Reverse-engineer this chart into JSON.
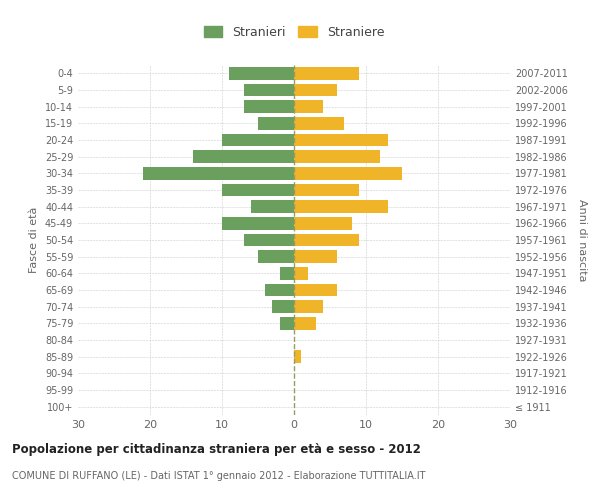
{
  "age_groups": [
    "100+",
    "95-99",
    "90-94",
    "85-89",
    "80-84",
    "75-79",
    "70-74",
    "65-69",
    "60-64",
    "55-59",
    "50-54",
    "45-49",
    "40-44",
    "35-39",
    "30-34",
    "25-29",
    "20-24",
    "15-19",
    "10-14",
    "5-9",
    "0-4"
  ],
  "birth_years": [
    "≤ 1911",
    "1912-1916",
    "1917-1921",
    "1922-1926",
    "1927-1931",
    "1932-1936",
    "1937-1941",
    "1942-1946",
    "1947-1951",
    "1952-1956",
    "1957-1961",
    "1962-1966",
    "1967-1971",
    "1972-1976",
    "1977-1981",
    "1982-1986",
    "1987-1991",
    "1992-1996",
    "1997-2001",
    "2002-2006",
    "2007-2011"
  ],
  "males": [
    0,
    0,
    0,
    0,
    0,
    2,
    3,
    4,
    2,
    5,
    7,
    10,
    6,
    10,
    21,
    14,
    10,
    5,
    7,
    7,
    9
  ],
  "females": [
    0,
    0,
    0,
    1,
    0,
    3,
    4,
    6,
    2,
    6,
    9,
    8,
    13,
    9,
    15,
    12,
    13,
    7,
    4,
    6,
    9
  ],
  "male_color": "#6a9f5e",
  "female_color": "#f0b429",
  "background_color": "#ffffff",
  "grid_color": "#cccccc",
  "title": "Popolazione per cittadinanza straniera per età e sesso - 2012",
  "subtitle": "COMUNE DI RUFFANO (LE) - Dati ISTAT 1° gennaio 2012 - Elaborazione TUTTITALIA.IT",
  "ylabel_left": "Fasce di età",
  "ylabel_right": "Anni di nascita",
  "xlim": 30,
  "legend_stranieri": "Stranieri",
  "legend_straniere": "Straniere"
}
